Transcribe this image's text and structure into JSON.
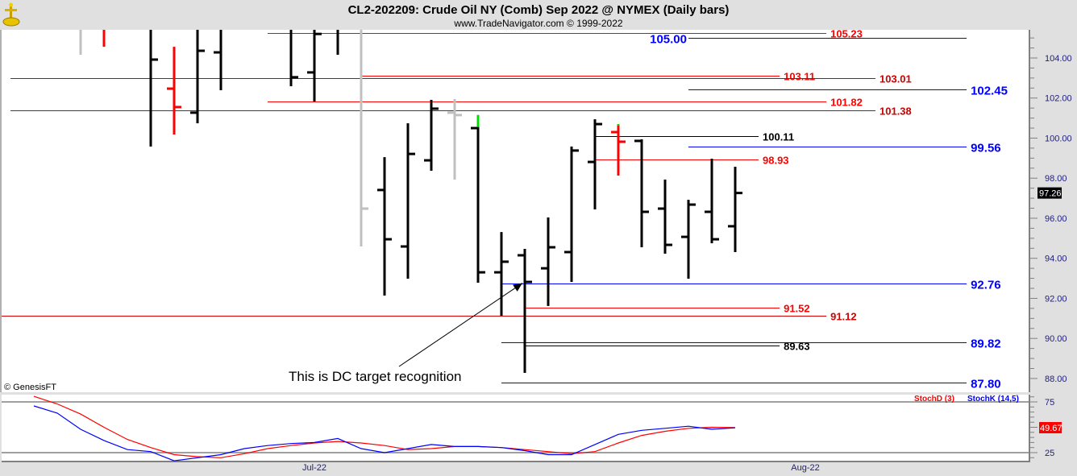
{
  "header": {
    "title": "CL2-202209:  Crude Oil NY (Comb) Sep 2022 @ NYMEX  (Daily bars)",
    "subtitle": "www.TradeNavigator.com © 1999-2022",
    "logo_icon": "gold-anchor-logo-icon"
  },
  "copyright": "© GenesisFT",
  "colors": {
    "up_bar": "#000000",
    "down_bar": "#ff0000",
    "inside_bar": "#c0c0c0",
    "new_high_marker": "#00dd00",
    "stoch_d": "#ff0000",
    "stoch_k": "#0000ff",
    "axis_text": "#202080",
    "blue_level": "#0000ff",
    "red_level": "#ff0000",
    "black_level": "#000000"
  },
  "chart_data": [
    {
      "type": "ohlc",
      "panel": "price",
      "title": "CL2-202209:  Crude Oil NY (Comb) Sep 2022 @ NYMEX  (Daily bars)",
      "ylim": [
        87.35,
        105.41
      ],
      "yticks": [
        88,
        90,
        92,
        94,
        96,
        98,
        100,
        102,
        104
      ],
      "ytick_labels": [
        "88.00",
        "90.00",
        "92.00",
        "94.00",
        "96.00",
        "98.00",
        "100.00",
        "102.00",
        "104.00"
      ],
      "xticks": [
        {
          "label": "Jul-22",
          "bar": 12
        },
        {
          "label": "Aug-22",
          "bar": 33
        }
      ],
      "last_price": "97.26",
      "note": "",
      "bars": [
        null,
        null,
        {
          "h": null,
          "l": 104.16,
          "o": null,
          "c": null,
          "color": "gray"
        },
        {
          "h": null,
          "l": 104.56,
          "o": null,
          "c": null,
          "color": "red"
        },
        null,
        {
          "h": null,
          "l": 99.58,
          "o": null,
          "c": 103.92,
          "color": "black"
        },
        {
          "h": 104.56,
          "l": 100.18,
          "o": 102.47,
          "c": 101.55,
          "color": "red"
        },
        {
          "h": null,
          "l": 100.74,
          "o": 101.27,
          "c": 104.36,
          "color": "black"
        },
        {
          "h": null,
          "l": 102.39,
          "o": 104.28,
          "c": null,
          "color": "black"
        },
        null,
        null,
        {
          "h": null,
          "l": 102.59,
          "o": null,
          "c": 103.04,
          "color": "black"
        },
        {
          "h": null,
          "l": 101.83,
          "o": 103.28,
          "c": 105.2,
          "color": "black"
        },
        {
          "h": null,
          "l": 104.16,
          "o": null,
          "c": null,
          "color": "black"
        },
        {
          "h": null,
          "l": 94.59,
          "o": null,
          "c": 96.48,
          "color": "gray"
        },
        {
          "h": 99.05,
          "l": 92.14,
          "o": 97.41,
          "c": 94.95,
          "color": "black"
        },
        {
          "h": 100.74,
          "l": 92.98,
          "o": 94.59,
          "c": 99.21,
          "color": "black"
        },
        {
          "h": 101.91,
          "l": 98.37,
          "o": 98.89,
          "c": 101.47,
          "color": "black"
        },
        {
          "h": 101.95,
          "l": 97.93,
          "o": 101.27,
          "c": 101.15,
          "color": "gray"
        },
        {
          "h": 101.15,
          "l": 92.78,
          "o": 100.5,
          "c": 93.3,
          "color": "black",
          "marker_top": 100.55
        },
        {
          "h": 95.31,
          "l": 91.13,
          "o": 93.3,
          "c": 93.83,
          "color": "black"
        },
        {
          "h": 94.47,
          "l": 88.28,
          "o": 94.15,
          "c": 92.82,
          "color": "black"
        },
        {
          "h": 96.04,
          "l": 91.62,
          "o": 93.5,
          "c": 94.55,
          "color": "black"
        },
        {
          "h": 99.58,
          "l": 92.82,
          "o": 94.31,
          "c": 99.38,
          "color": "black"
        },
        {
          "h": 100.94,
          "l": 96.44,
          "o": 98.81,
          "c": 100.7,
          "color": "black"
        },
        {
          "h": 100.7,
          "l": 98.13,
          "o": 100.3,
          "c": 99.82,
          "color": "red",
          "marker_top": 100.62
        },
        {
          "h": 99.94,
          "l": 94.55,
          "o": 99.86,
          "c": 96.32,
          "color": "black"
        },
        {
          "h": 97.93,
          "l": 94.23,
          "o": 96.48,
          "c": 94.67,
          "color": "black"
        },
        {
          "h": 96.92,
          "l": 92.98,
          "o": 95.07,
          "c": 96.68,
          "color": "black"
        },
        {
          "h": 98.97,
          "l": 94.75,
          "o": 96.32,
          "c": 94.95,
          "color": "black"
        },
        {
          "h": 98.57,
          "l": 94.31,
          "o": 95.6,
          "c": 97.26,
          "color": "black"
        }
      ],
      "levels": [
        {
          "price": 105.23,
          "label": "105.23",
          "color": "red",
          "from_bar": 10,
          "to_bar": 33.9,
          "label_side": "right"
        },
        {
          "price": 105.0,
          "label": "105.00",
          "color": "blue",
          "from_bar": 28,
          "to_bar": 39.9,
          "label_side": "left"
        },
        {
          "price": 103.11,
          "label": "103.11",
          "color": "red",
          "from_bar": 14,
          "to_bar": 31.9,
          "label_side": "right"
        },
        {
          "price": 103.01,
          "label": "103.01",
          "color": "darkred",
          "from_bar": -1,
          "to_bar": 36,
          "label_side": "right"
        },
        {
          "price": 102.45,
          "label": "102.45",
          "color": "blue",
          "from_bar": 28,
          "to_bar": 39.9,
          "label_side": "right"
        },
        {
          "price": 101.82,
          "label": "101.82",
          "color": "red",
          "from_bar": 10,
          "to_bar": 33.9,
          "label_side": "right"
        },
        {
          "price": 101.38,
          "label": "101.38",
          "color": "darkred",
          "from_bar": -1,
          "to_bar": 36,
          "label_side": "right"
        },
        {
          "price": 100.11,
          "label": "100.11",
          "color": "black",
          "from_bar": 24,
          "to_bar": 31,
          "label_side": "right"
        },
        {
          "price": 99.56,
          "label": "99.56",
          "color": "blue",
          "from_bar": 28,
          "to_bar": 39.9,
          "label_side": "right"
        },
        {
          "price": 98.93,
          "label": "98.93",
          "color": "red",
          "from_bar": 24,
          "to_bar": 31,
          "label_side": "right"
        },
        {
          "price": 92.76,
          "label": "92.76",
          "color": "blue",
          "from_bar": 20,
          "to_bar": 39.9,
          "label_side": "right"
        },
        {
          "price": 91.52,
          "label": "91.52",
          "color": "red",
          "from_bar": 21,
          "to_bar": 31.9,
          "label_side": "right"
        },
        {
          "price": 91.12,
          "label": "91.12",
          "color": "darkred",
          "from_bar": -1.5,
          "to_bar": 33.9,
          "label_side": "right"
        },
        {
          "price": 89.82,
          "label": "89.82",
          "color": "blue",
          "from_bar": 20,
          "to_bar": 39.9,
          "label_side": "right"
        },
        {
          "price": 89.63,
          "label": "89.63",
          "color": "black",
          "from_bar": 21,
          "to_bar": 31.9,
          "label_side": "right"
        },
        {
          "price": 87.8,
          "label": "87.80",
          "color": "blue",
          "from_bar": 20,
          "to_bar": 39.9,
          "label_side": "right"
        }
      ],
      "annotation": {
        "text": "This is DC target recognition",
        "target_bar": 21,
        "target_price": 92.8
      }
    },
    {
      "type": "line",
      "panel": "stochastic",
      "ylim": [
        17,
        85
      ],
      "yticks": [
        25,
        75
      ],
      "ytick_labels": [
        "25",
        "75"
      ],
      "last_value": "49.67",
      "series": [
        {
          "name": "StochD (3)",
          "color": "#ff0000",
          "values": [
            80.5,
            73,
            63,
            50,
            38,
            30,
            23,
            21,
            20,
            24,
            29,
            32,
            34.5,
            36,
            34.5,
            32,
            28,
            29,
            31,
            31,
            30,
            28,
            26,
            24,
            26,
            34.5,
            42,
            46,
            49,
            50,
            49.67
          ]
        },
        {
          "name": "StochK (14,5)",
          "color": "#0000ff",
          "values": [
            71,
            64,
            48,
            37,
            28,
            26,
            17,
            20,
            23,
            29,
            32,
            34,
            35,
            39,
            29,
            25,
            29,
            33,
            31,
            31,
            30,
            27,
            23,
            23,
            33,
            43,
            47,
            49,
            51,
            48,
            49.5
          ]
        }
      ]
    }
  ]
}
